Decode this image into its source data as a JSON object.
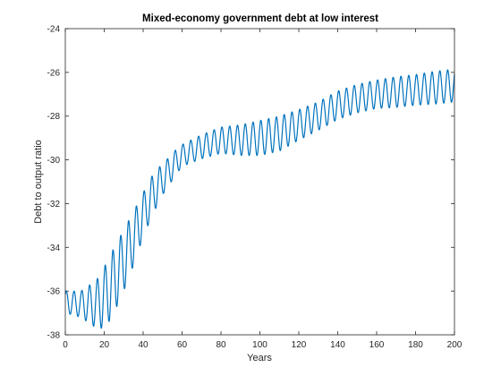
{
  "chart_data": {
    "type": "line",
    "title": "Mixed-economy government debt at low interest",
    "xlabel": "Years",
    "ylabel": "Debt to output ratio",
    "xlim": [
      0,
      200
    ],
    "ylim": [
      -38,
      -24
    ],
    "xticks": [
      0,
      20,
      40,
      60,
      80,
      100,
      120,
      140,
      160,
      180,
      200
    ],
    "yticks": [
      -24,
      -26,
      -28,
      -30,
      -32,
      -34,
      -36,
      -38
    ],
    "grid": false,
    "legend": "none",
    "oscillation_period_years": 4,
    "series": [
      {
        "color": "#0072BD",
        "trend_points": [
          {
            "x": 0,
            "mid": -36.5,
            "amp": 0.5
          },
          {
            "x": 8,
            "mid": -36.6,
            "amp": 0.6
          },
          {
            "x": 16,
            "mid": -36.6,
            "amp": 1.1
          },
          {
            "x": 20,
            "mid": -36.3,
            "amp": 1.4
          },
          {
            "x": 24,
            "mid": -35.7,
            "amp": 1.5
          },
          {
            "x": 30,
            "mid": -34.6,
            "amp": 1.4
          },
          {
            "x": 36,
            "mid": -33.4,
            "amp": 1.2
          },
          {
            "x": 40,
            "mid": -32.5,
            "amp": 1.0
          },
          {
            "x": 46,
            "mid": -31.4,
            "amp": 0.9
          },
          {
            "x": 50,
            "mid": -30.9,
            "amp": 0.7
          },
          {
            "x": 56,
            "mid": -30.2,
            "amp": 0.6
          },
          {
            "x": 60,
            "mid": -29.8,
            "amp": 0.5
          },
          {
            "x": 70,
            "mid": -29.4,
            "amp": 0.55
          },
          {
            "x": 80,
            "mid": -29.1,
            "amp": 0.6
          },
          {
            "x": 90,
            "mid": -29.1,
            "amp": 0.7
          },
          {
            "x": 100,
            "mid": -29.0,
            "amp": 0.8
          },
          {
            "x": 110,
            "mid": -28.8,
            "amp": 0.8
          },
          {
            "x": 120,
            "mid": -28.4,
            "amp": 0.7
          },
          {
            "x": 130,
            "mid": -28.0,
            "amp": 0.65
          },
          {
            "x": 140,
            "mid": -27.5,
            "amp": 0.65
          },
          {
            "x": 150,
            "mid": -27.2,
            "amp": 0.65
          },
          {
            "x": 160,
            "mid": -27.0,
            "amp": 0.65
          },
          {
            "x": 170,
            "mid": -26.9,
            "amp": 0.7
          },
          {
            "x": 180,
            "mid": -26.8,
            "amp": 0.7
          },
          {
            "x": 190,
            "mid": -26.7,
            "amp": 0.75
          },
          {
            "x": 200,
            "mid": -26.6,
            "amp": 0.75
          }
        ]
      }
    ]
  }
}
